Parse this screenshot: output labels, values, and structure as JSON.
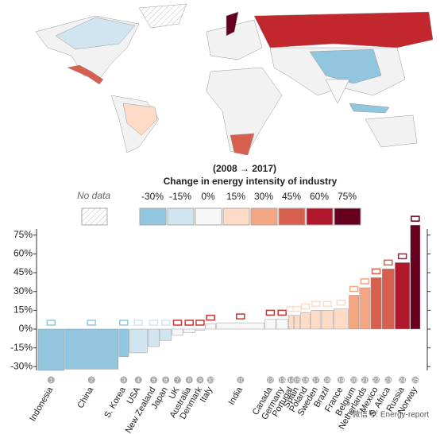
{
  "chart_data": {
    "type": "bar",
    "legend_title": "(2008 → 2017)",
    "legend_subtitle": "Change in energy intensity of industry",
    "no_data_label": "No data",
    "legend": [
      {
        "label": "-30%",
        "color": "#92c5de"
      },
      {
        "label": "-15%",
        "color": "#d1e5f0"
      },
      {
        "label": "0%",
        "color": "#f7f7f7"
      },
      {
        "label": "15%",
        "color": "#fddbc7"
      },
      {
        "label": "30%",
        "color": "#f4a582"
      },
      {
        "label": "45%",
        "color": "#d6604d"
      },
      {
        "label": "60%",
        "color": "#b2182b"
      },
      {
        "label": "75%",
        "color": "#67001f"
      }
    ],
    "categories": [
      "Indonesia",
      "China",
      "S. Korea",
      "USA",
      "New Zealand",
      "Japan",
      "UK",
      "Australia",
      "Denmark",
      "Italy",
      "India",
      "Canada",
      "Germany",
      "Portugal",
      "Spain",
      "Poland",
      "Sweden",
      "Brazil",
      "France",
      "Belgium",
      "Netherlands",
      "Mexico",
      "S. Africa",
      "Russia",
      "Norway"
    ],
    "ranks": [
      1,
      2,
      3,
      4,
      5,
      6,
      7,
      8,
      9,
      10,
      11,
      12,
      13,
      14,
      15,
      16,
      17,
      18,
      19,
      20,
      21,
      22,
      23,
      24,
      25
    ],
    "values": [
      -33,
      -32,
      -22,
      -19,
      -14,
      -9,
      -5,
      -3,
      -1,
      4,
      5,
      8,
      8,
      11,
      11,
      13,
      15,
      15,
      16,
      27,
      33,
      41,
      48,
      53,
      83
    ],
    "widths": [
      32,
      66,
      12,
      22,
      14,
      14,
      13,
      14,
      11,
      13,
      59,
      13,
      14,
      6,
      7,
      12,
      12,
      14,
      18,
      12,
      13,
      13,
      15,
      18,
      12
    ],
    "colors": [
      "#92c5de",
      "#92c5de",
      "#92c5de",
      "#d1e5f0",
      "#d1e5f0",
      "#d1e5f0",
      "#f7f7f7",
      "#f7f7f7",
      "#f7f7f7",
      "#f7f7f7",
      "#f7f7f7",
      "#f7f7f7",
      "#f7f7f7",
      "#fddbc7",
      "#fddbc7",
      "#fddbc7",
      "#fddbc7",
      "#fddbc7",
      "#fddbc7",
      "#f4a582",
      "#f4a582",
      "#d6604d",
      "#d6604d",
      "#b2182b",
      "#67001f"
    ],
    "ylim": [
      -33,
      85
    ],
    "yticks": [
      {
        "value": -30,
        "label": "-30%"
      },
      {
        "value": -15,
        "label": "-15%"
      },
      {
        "value": 0,
        "label": "0%"
      },
      {
        "value": 15,
        "label": "15%"
      },
      {
        "value": 30,
        "label": "30%"
      },
      {
        "value": 45,
        "label": "45%"
      },
      {
        "value": 60,
        "label": "60%"
      },
      {
        "value": 75,
        "label": "75%"
      }
    ],
    "watermark": "微信号: Energy-report"
  }
}
